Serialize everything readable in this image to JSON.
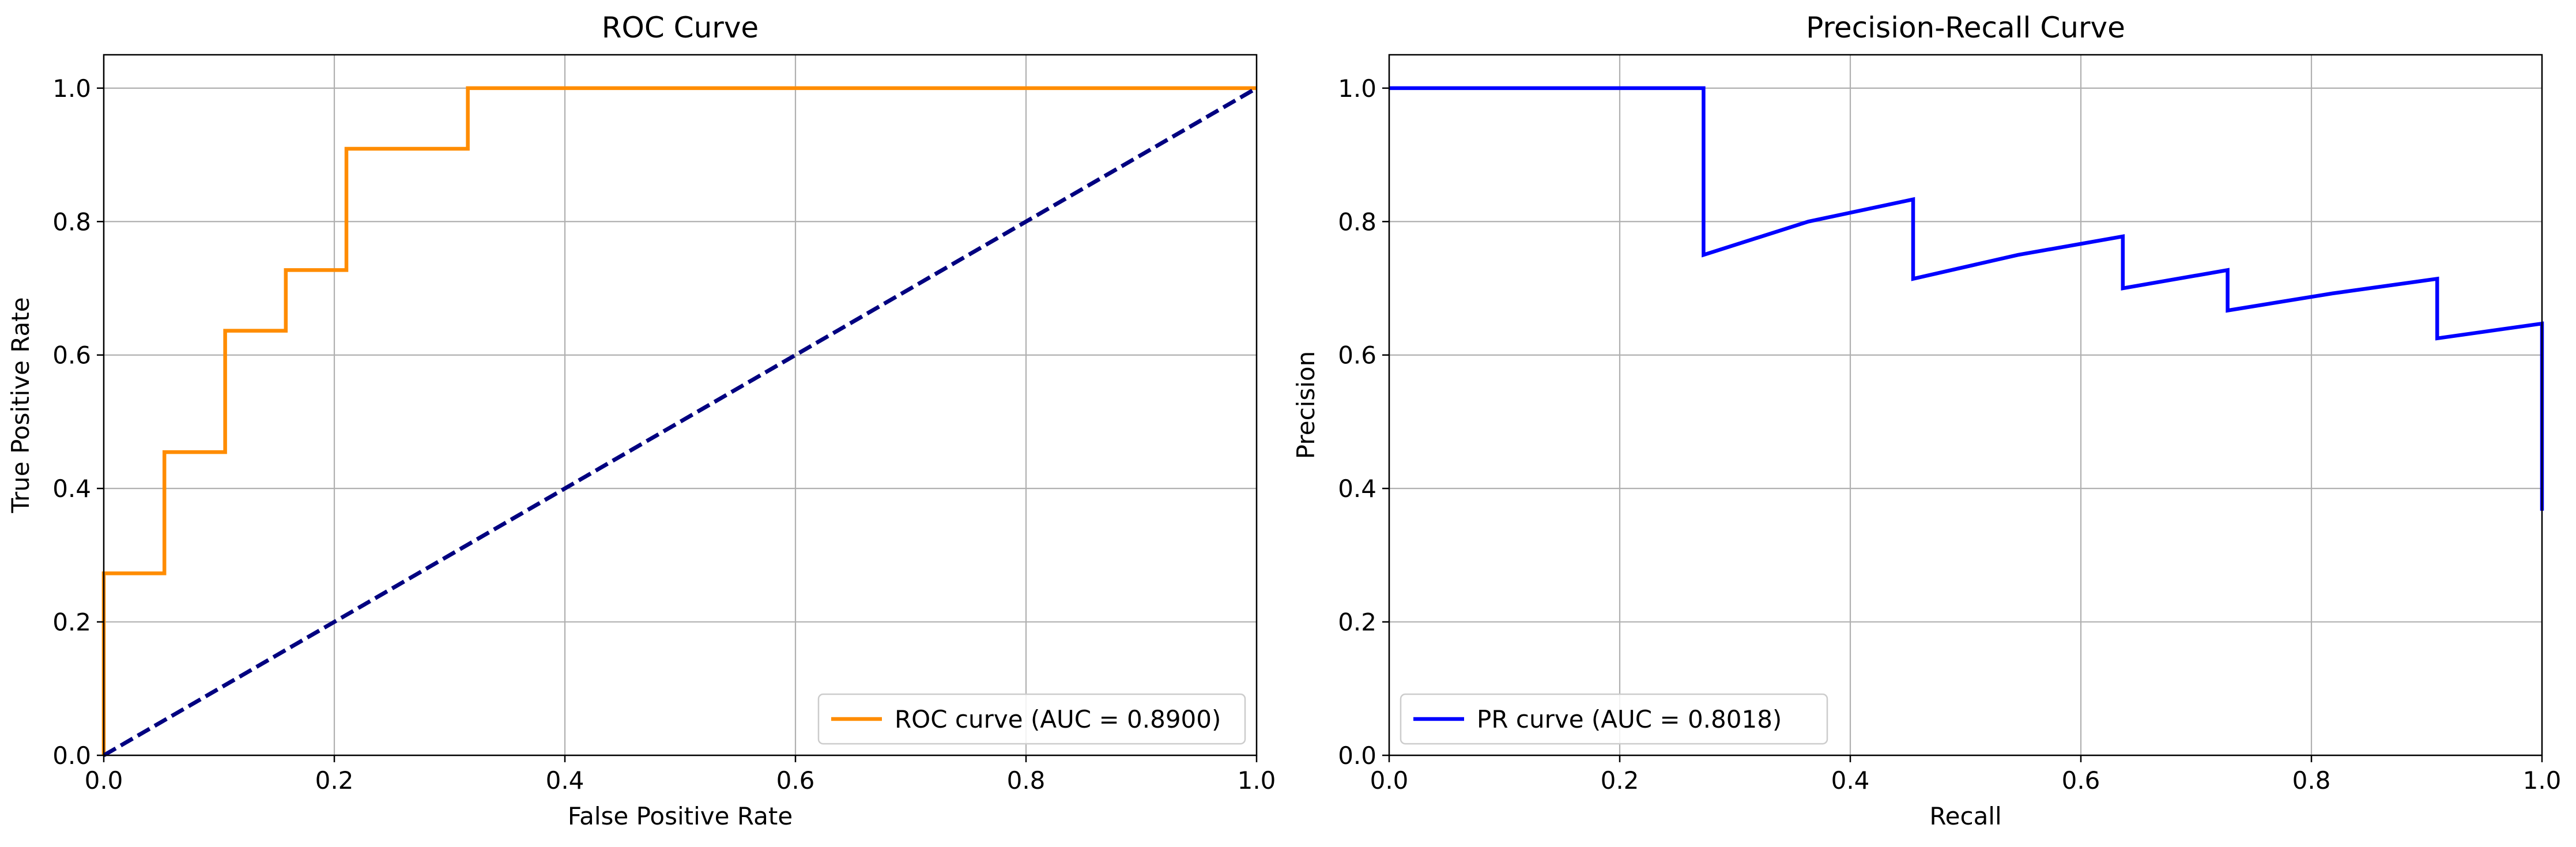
{
  "chart_data": [
    {
      "type": "line",
      "title": "ROC Curve",
      "xlabel": "False Positive Rate",
      "ylabel": "True Positive Rate",
      "xlim": [
        0.0,
        1.0
      ],
      "ylim": [
        0.0,
        1.05
      ],
      "xticks": [
        "0.0",
        "0.2",
        "0.4",
        "0.6",
        "0.8",
        "1.0"
      ],
      "yticks": [
        "0.0",
        "0.2",
        "0.4",
        "0.6",
        "0.8",
        "1.0"
      ],
      "grid": true,
      "legend_position": "lower right",
      "series": [
        {
          "name": "ROC curve (AUC = 0.8900)",
          "color": "#ff8c00",
          "style": "solid",
          "x": [
            0.0,
            0.0,
            0.0526,
            0.0526,
            0.1053,
            0.1053,
            0.1579,
            0.1579,
            0.2105,
            0.2105,
            0.3158,
            0.3158,
            1.0
          ],
          "y": [
            0.0,
            0.2727,
            0.2727,
            0.4545,
            0.4545,
            0.6364,
            0.6364,
            0.7273,
            0.7273,
            0.9091,
            0.9091,
            1.0,
            1.0
          ]
        },
        {
          "color": "#000080",
          "style": "dashed",
          "x": [
            0.0,
            1.0
          ],
          "y": [
            0.0,
            1.0
          ]
        }
      ]
    },
    {
      "type": "line",
      "title": "Precision-Recall Curve",
      "xlabel": "Recall",
      "ylabel": "Precision",
      "xlim": [
        0.0,
        1.0
      ],
      "ylim": [
        0.0,
        1.05
      ],
      "xticks": [
        "0.0",
        "0.2",
        "0.4",
        "0.6",
        "0.8",
        "1.0"
      ],
      "yticks": [
        "0.0",
        "0.2",
        "0.4",
        "0.6",
        "0.8",
        "1.0"
      ],
      "grid": true,
      "legend_position": "lower left",
      "series": [
        {
          "name": "PR curve (AUC = 0.8018)",
          "color": "#0000ff",
          "style": "solid",
          "x": [
            0.0,
            0.2727,
            0.2727,
            0.3636,
            0.4545,
            0.4545,
            0.5455,
            0.6364,
            0.6364,
            0.7273,
            0.7273,
            0.8182,
            0.9091,
            0.9091,
            1.0,
            1.0
          ],
          "y": [
            1.0,
            1.0,
            0.75,
            0.8,
            0.8333,
            0.7143,
            0.75,
            0.7778,
            0.7,
            0.7273,
            0.6667,
            0.6923,
            0.7143,
            0.625,
            0.6471,
            0.3667
          ]
        }
      ]
    }
  ]
}
